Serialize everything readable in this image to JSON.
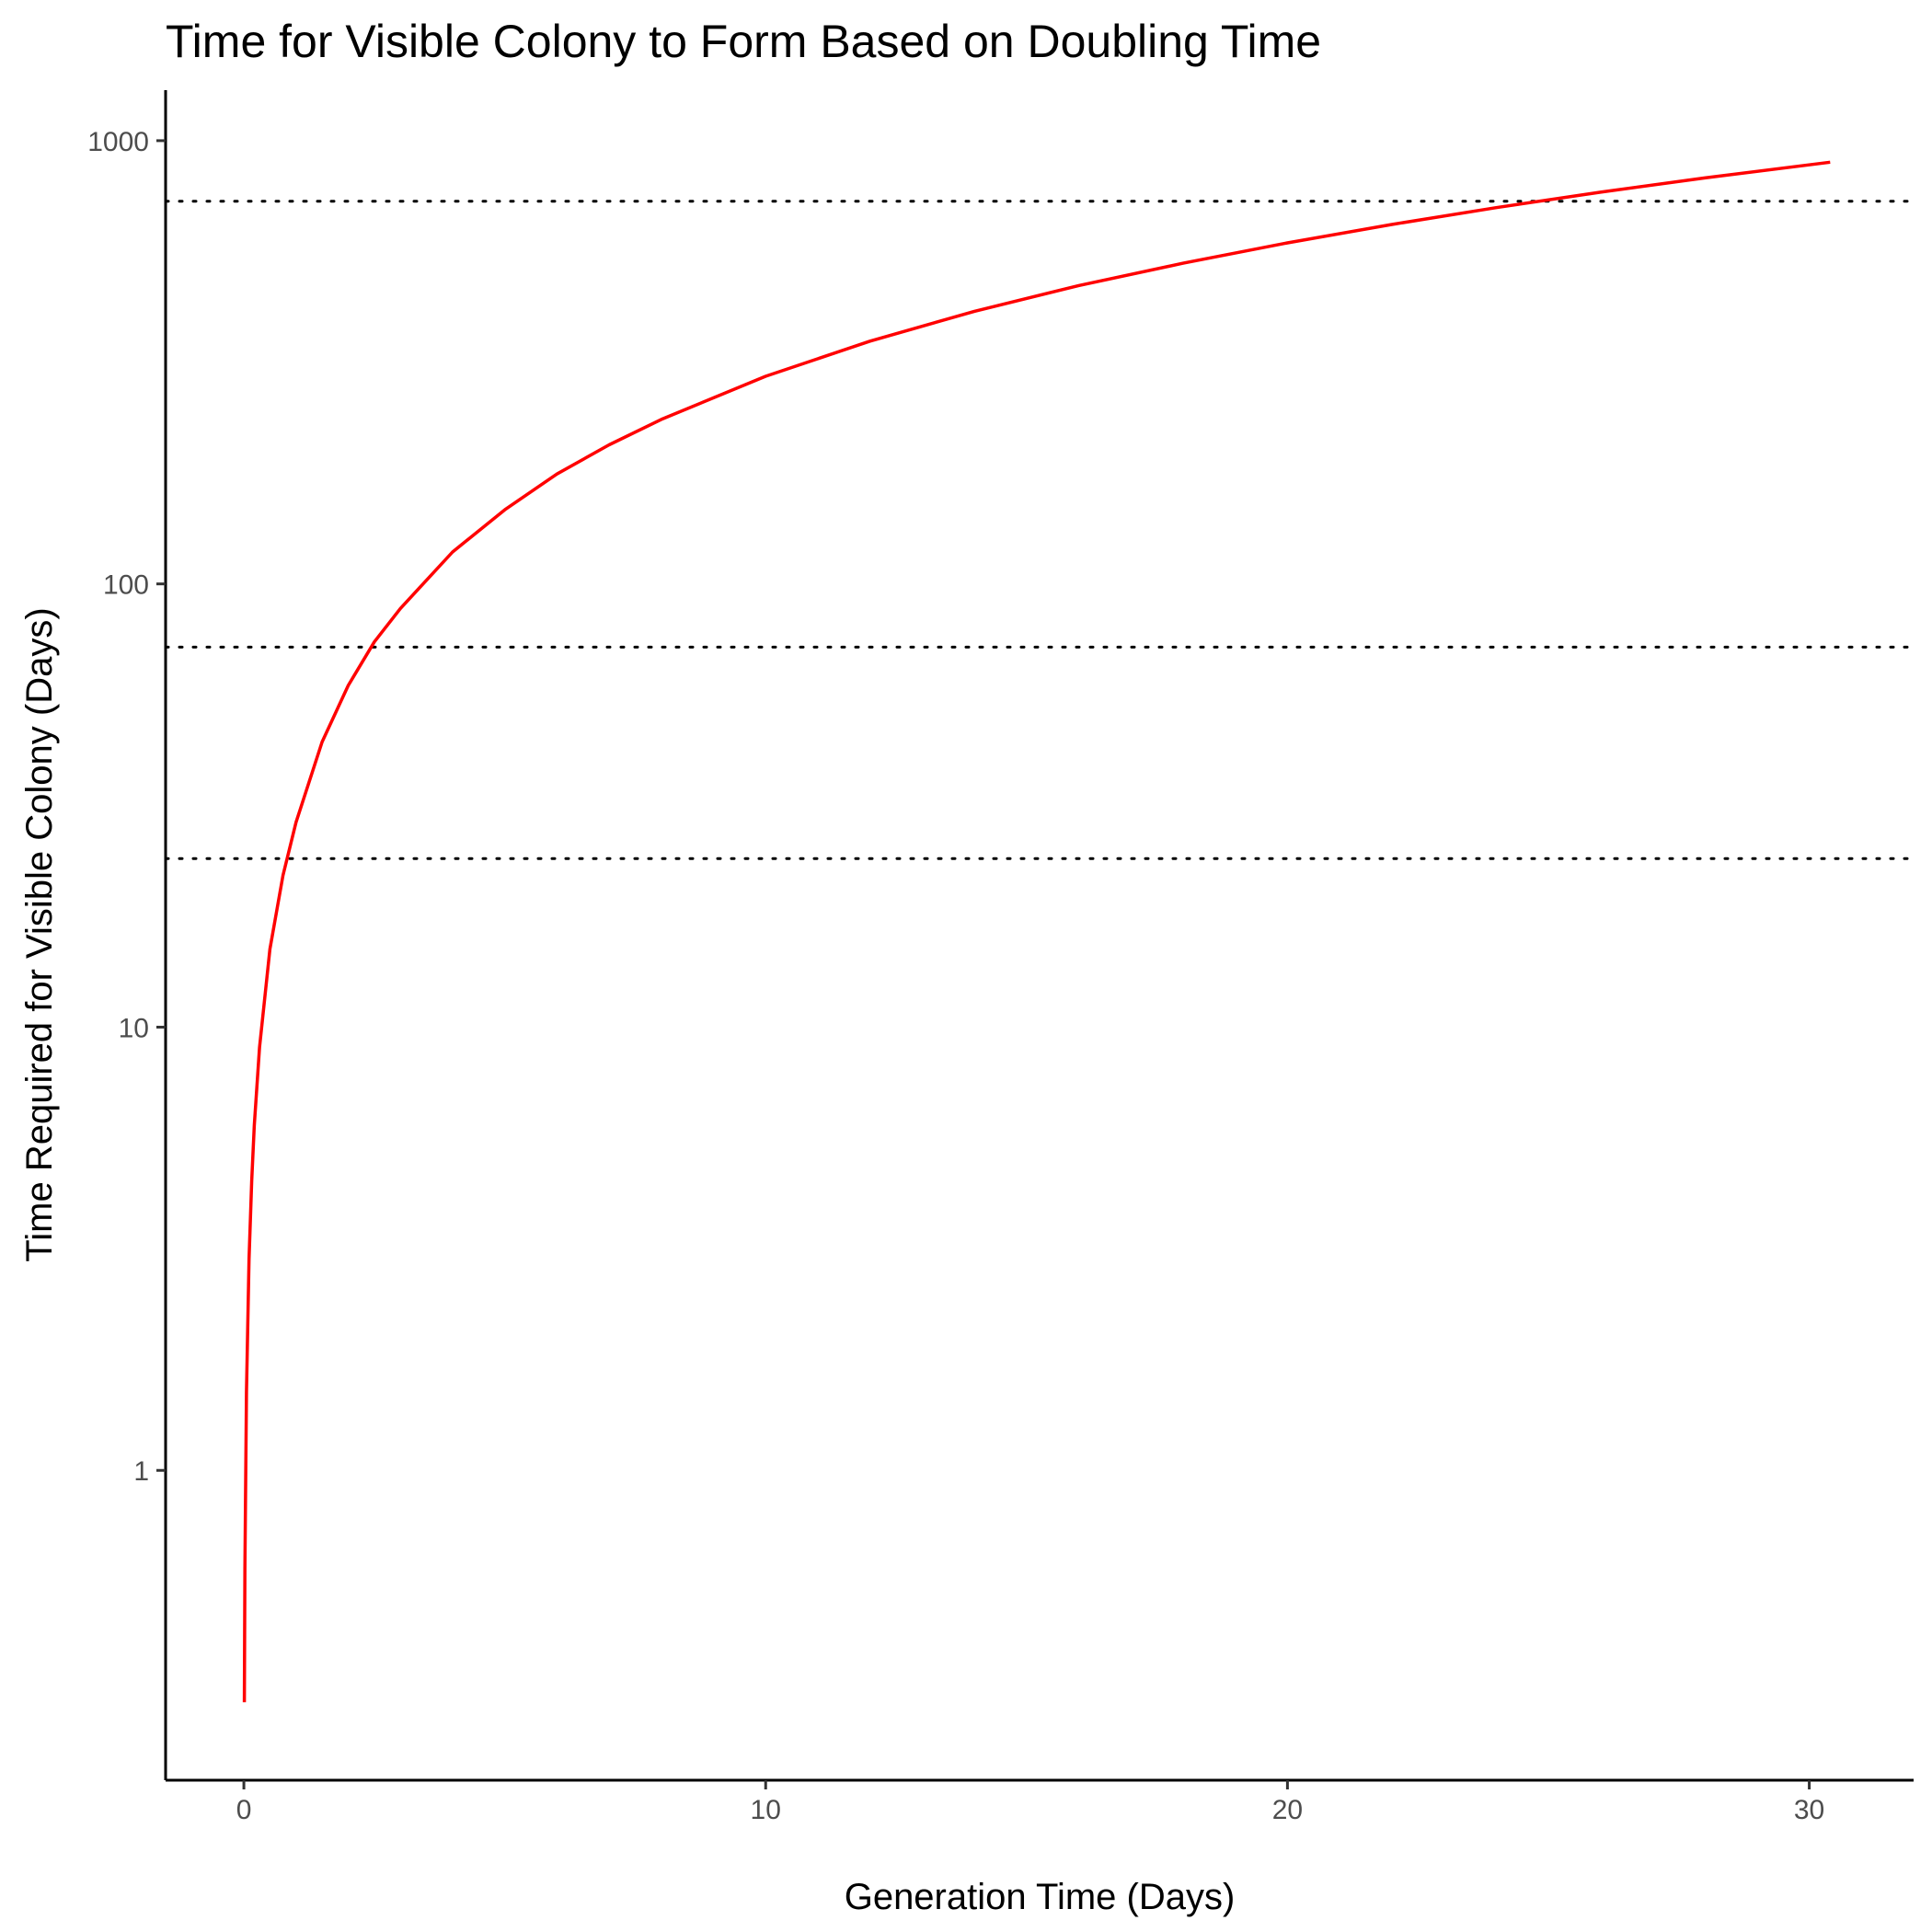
{
  "chart_data": {
    "type": "line",
    "title": "Time for Visible Colony to Form Based on Doubling Time",
    "xlabel": "Generation Time (Days)",
    "ylabel": "Time Required for Visible Colony (Days)",
    "x_scale": "linear",
    "y_scale": "log10",
    "xlim": [
      -1.5,
      32
    ],
    "ylim": [
      0.2,
      1300
    ],
    "x_ticks": [
      0,
      10,
      20,
      30
    ],
    "x_tick_labels": [
      "0",
      "10",
      "20",
      "30"
    ],
    "y_ticks": [
      1,
      10,
      100,
      1000
    ],
    "y_tick_labels": [
      "1",
      "10",
      "100",
      "1000"
    ],
    "grid": false,
    "legend": "none",
    "series": [
      {
        "color": "#ff0000",
        "x": [
          0.01,
          0.02,
          0.05,
          0.1,
          0.15,
          0.2,
          0.3,
          0.5,
          0.75,
          1,
          1.5,
          2,
          2.5,
          3,
          4,
          5,
          6,
          7,
          8,
          10,
          12,
          14,
          16,
          18,
          20,
          22,
          24,
          26,
          28,
          30.4
        ],
        "y": [
          0.3,
          0.6,
          1.5,
          3.0,
          4.5,
          6.0,
          9.0,
          15,
          22,
          29,
          44,
          59,
          74,
          88,
          118,
          147,
          177,
          206,
          235,
          294,
          353,
          412,
          471,
          529,
          588,
          647,
          706,
          765,
          824,
          894
        ]
      }
    ],
    "reference_lines": [
      {
        "orientation": "horizontal",
        "y": 24,
        "style": "dotted",
        "color": "#000000"
      },
      {
        "orientation": "horizontal",
        "y": 72,
        "style": "dotted",
        "color": "#000000"
      },
      {
        "orientation": "horizontal",
        "y": 730,
        "style": "dotted",
        "color": "#000000"
      }
    ]
  }
}
